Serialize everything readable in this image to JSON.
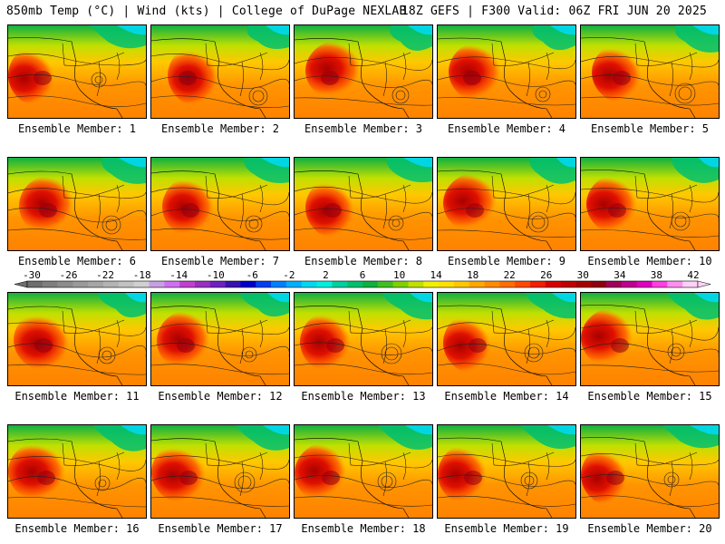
{
  "header": {
    "left": "850mb Temp (°C) | Wind (kts) | College of DuPage NEXLAB",
    "right": "18Z GEFS | F300 Valid: 06Z FRI JUN 20 2025"
  },
  "members": [
    {
      "label": "Ensemble Member: 1",
      "icon": "temperature-map"
    },
    {
      "label": "Ensemble Member: 2",
      "icon": "temperature-map"
    },
    {
      "label": "Ensemble Member: 3",
      "icon": "temperature-map"
    },
    {
      "label": "Ensemble Member: 4",
      "icon": "temperature-map"
    },
    {
      "label": "Ensemble Member: 5",
      "icon": "temperature-map"
    },
    {
      "label": "Ensemble Member: 6",
      "icon": "temperature-map"
    },
    {
      "label": "Ensemble Member: 7",
      "icon": "temperature-map"
    },
    {
      "label": "Ensemble Member: 8",
      "icon": "temperature-map"
    },
    {
      "label": "Ensemble Member: 9",
      "icon": "temperature-map"
    },
    {
      "label": "Ensemble Member: 10",
      "icon": "temperature-map"
    },
    {
      "label": "Ensemble Member: 11",
      "icon": "temperature-map"
    },
    {
      "label": "Ensemble Member: 12",
      "icon": "temperature-map"
    },
    {
      "label": "Ensemble Member: 13",
      "icon": "temperature-map"
    },
    {
      "label": "Ensemble Member: 14",
      "icon": "temperature-map"
    },
    {
      "label": "Ensemble Member: 15",
      "icon": "temperature-map"
    },
    {
      "label": "Ensemble Member: 16",
      "icon": "temperature-map"
    },
    {
      "label": "Ensemble Member: 17",
      "icon": "temperature-map"
    },
    {
      "label": "Ensemble Member: 18",
      "icon": "temperature-map"
    },
    {
      "label": "Ensemble Member: 19",
      "icon": "temperature-map"
    },
    {
      "label": "Ensemble Member: 20",
      "icon": "temperature-map"
    }
  ],
  "colorbar": {
    "ticks": [
      "-30",
      "-26",
      "-22",
      "-18",
      "-14",
      "-10",
      "-6",
      "-2",
      "2",
      "6",
      "10",
      "14",
      "18",
      "22",
      "26",
      "30",
      "34",
      "38",
      "42"
    ],
    "colors": [
      "#6e6e6e",
      "#7f7f7f",
      "#8c8c8c",
      "#9a9a9a",
      "#a6a6a6",
      "#b4b4b4",
      "#c2c2c2",
      "#d0d0d0",
      "#c8a0e0",
      "#d070f0",
      "#c040d0",
      "#9a30c0",
      "#7020c0",
      "#3a10b0",
      "#0000c8",
      "#0040f0",
      "#0080ff",
      "#00b0ff",
      "#00d8f0",
      "#00f0e0",
      "#00d0a0",
      "#00c070",
      "#10b040",
      "#40c020",
      "#80d000",
      "#c0e000",
      "#f0f000",
      "#ffe000",
      "#ffc800",
      "#ffa800",
      "#ff8c00",
      "#ff6e00",
      "#ff4a00",
      "#f02000",
      "#d80000",
      "#c00000",
      "#a80000",
      "#900010",
      "#a0005a",
      "#c00090",
      "#e000c0",
      "#ff40e0",
      "#ff90f0",
      "#ffd0f8"
    ]
  }
}
